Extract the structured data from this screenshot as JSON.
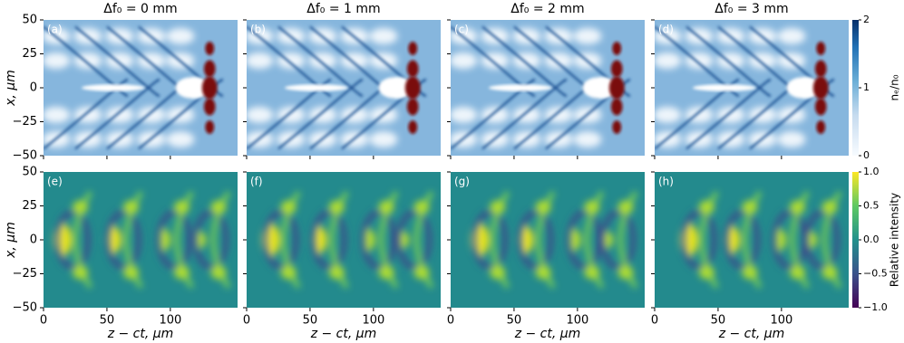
{
  "chart_data": {
    "type": "heatmap-grid",
    "titles": [
      "Δf₀ = 0 mm",
      "Δf₀ = 1 mm",
      "Δf₀ = 2 mm",
      "Δf₀ = 3 mm"
    ],
    "xlabel": "z − ct, µm",
    "xlim": [
      0,
      153
    ],
    "xticks": [
      0,
      50,
      100
    ],
    "ylabel": "x, µm",
    "ylim": [
      -50,
      50
    ],
    "yticks": [
      50,
      25,
      0,
      {
        "value": -25,
        "label": "−25"
      },
      {
        "value": -50,
        "label": "−50"
      }
    ],
    "rows": [
      {
        "panel_labels": [
          "(a)",
          "(b)",
          "(c)",
          "(d)"
        ],
        "colorbar": {
          "label": "nₑ/n₀",
          "lim": [
            0,
            2
          ],
          "ticks": [
            0,
            1,
            2
          ]
        }
      },
      {
        "panel_labels": [
          "(e)",
          "(f)",
          "(g)",
          "(h)"
        ],
        "colorbar": {
          "label": "Relative intensity",
          "lim": [
            -1,
            1
          ],
          "ticks": [
            {
              "value": -1,
              "label": "−1.0"
            },
            {
              "value": -0.5,
              "label": "−0.5"
            },
            {
              "value": 0,
              "label": "0.0"
            },
            0.5,
            {
              "value": 1,
              "label": "1.0"
            }
          ]
        }
      }
    ]
  }
}
